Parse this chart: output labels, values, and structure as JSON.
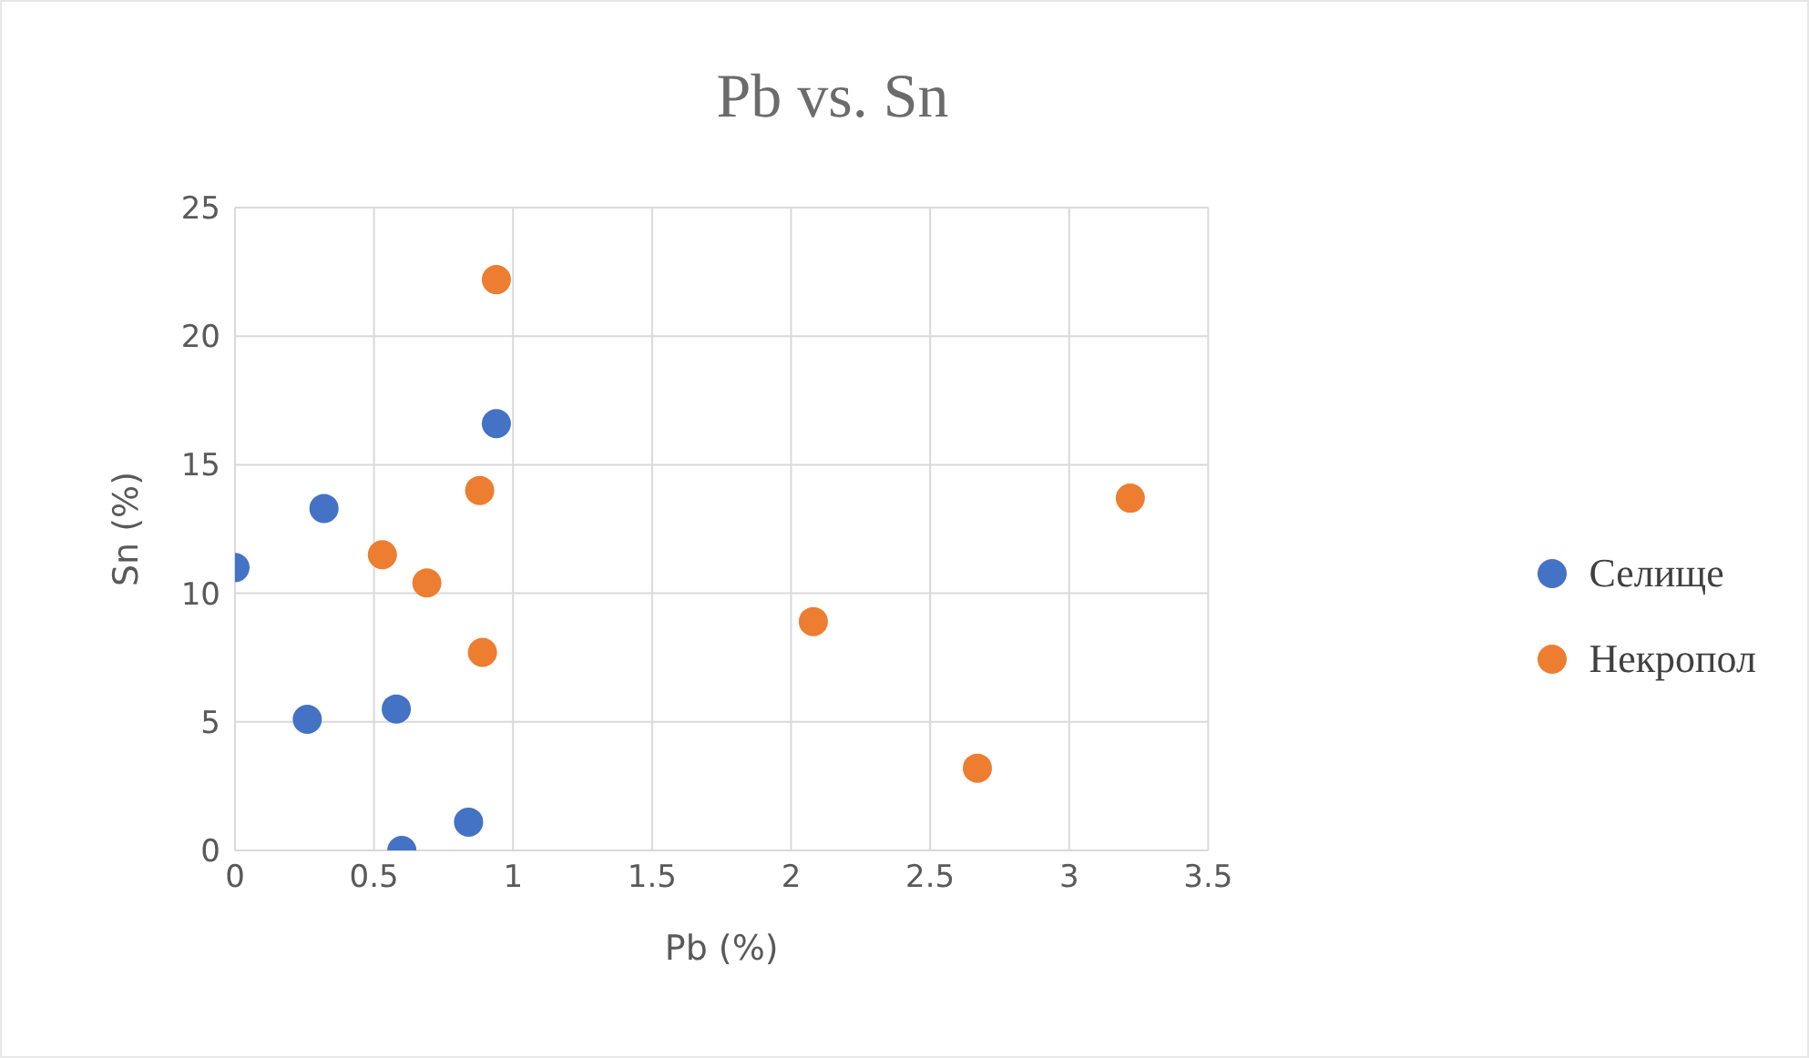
{
  "chart_data": {
    "type": "scatter",
    "title": "Pb vs. Sn",
    "xlabel": "Pb (%)",
    "ylabel": "Sn (%)",
    "series": [
      {
        "name": "Селище",
        "color": "#4472c4",
        "x": [
          0,
          0.32,
          0.26,
          0.58,
          0.6,
          0.84,
          0.94
        ],
        "values": [
          11.0,
          13.3,
          5.1,
          5.5,
          0,
          1.1,
          16.6
        ]
      },
      {
        "name": "Некропол",
        "color": "#ed7d31",
        "x": [
          0.94,
          0.88,
          0.53,
          0.69,
          0.89,
          2.08,
          2.67,
          3.22
        ],
        "values": [
          22.2,
          14.0,
          11.5,
          10.4,
          7.7,
          8.9,
          3.2,
          13.7
        ]
      }
    ],
    "xlim": [
      0,
      3.5
    ],
    "xticks": [
      0,
      0.5,
      1,
      1.5,
      2,
      2.5,
      3,
      3.5
    ],
    "ylim": [
      0,
      25
    ],
    "yticks": [
      0,
      5,
      10,
      15,
      20,
      25
    ],
    "grid": true,
    "legend": "right",
    "marker": "circle"
  }
}
